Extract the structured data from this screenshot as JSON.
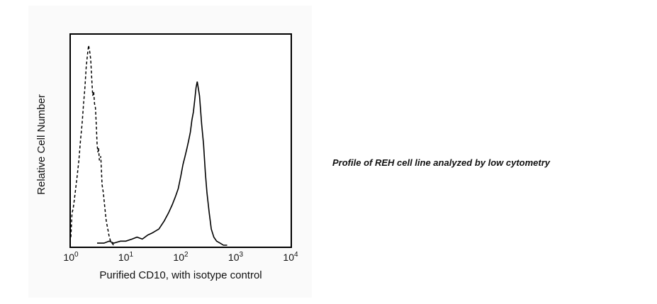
{
  "caption": "Profile of REH cell line analyzed by low cytometry",
  "chart_data": {
    "type": "line",
    "title": "",
    "xlabel": "Purified CD10, with isotype control",
    "ylabel": "Relative Cell Number",
    "x_scale": "log",
    "xlim": [
      1,
      10000
    ],
    "ylim": [
      0,
      1
    ],
    "x_ticks": [
      {
        "value": 1,
        "base": "10",
        "exp": "0"
      },
      {
        "value": 10,
        "base": "10",
        "exp": "1"
      },
      {
        "value": 100,
        "base": "10",
        "exp": "2"
      },
      {
        "value": 1000,
        "base": "10",
        "exp": "3"
      },
      {
        "value": 10000,
        "base": "10",
        "exp": "4"
      }
    ],
    "grid": false,
    "legend": "none",
    "series": [
      {
        "style": "dashed",
        "color": "#000000",
        "x": [
          1.0,
          1.05,
          1.1,
          1.15,
          1.2,
          1.3,
          1.4,
          1.5,
          1.6,
          1.7,
          1.8,
          1.9,
          2.0,
          2.1,
          2.2,
          2.3,
          2.4,
          2.5,
          2.6,
          2.7,
          2.8,
          2.9,
          3.0,
          3.1,
          3.2,
          3.3,
          3.5,
          3.7,
          3.9,
          4.1,
          4.4,
          4.7,
          5.0,
          5.3,
          5.6,
          6.0
        ],
        "y": [
          0.04,
          0.16,
          0.18,
          0.22,
          0.26,
          0.34,
          0.42,
          0.52,
          0.6,
          0.7,
          0.78,
          0.88,
          0.94,
          0.99,
          0.96,
          0.92,
          0.82,
          0.74,
          0.76,
          0.7,
          0.68,
          0.6,
          0.5,
          0.46,
          0.48,
          0.42,
          0.44,
          0.3,
          0.26,
          0.2,
          0.12,
          0.08,
          0.04,
          0.02,
          0.01,
          0.0
        ]
      },
      {
        "style": "solid",
        "color": "#000000",
        "x": [
          3.0,
          4.0,
          5.0,
          6.0,
          8.0,
          10.0,
          13.0,
          16.0,
          20.0,
          25.0,
          30.0,
          40.0,
          50.0,
          60.0,
          70.0,
          80.0,
          90.0,
          100.0,
          110.0,
          120.0,
          130.0,
          140.0,
          150.0,
          160.0,
          170.0,
          180.0,
          190.0,
          200.0,
          220.0,
          240.0,
          260.0,
          280.0,
          300.0,
          330.0,
          360.0,
          400.0,
          450.0,
          520.0,
          600.0,
          700.0
        ],
        "y": [
          0.01,
          0.01,
          0.02,
          0.01,
          0.02,
          0.02,
          0.03,
          0.04,
          0.03,
          0.05,
          0.06,
          0.08,
          0.12,
          0.16,
          0.2,
          0.24,
          0.28,
          0.34,
          0.4,
          0.44,
          0.48,
          0.52,
          0.56,
          0.62,
          0.66,
          0.72,
          0.78,
          0.81,
          0.74,
          0.6,
          0.5,
          0.36,
          0.26,
          0.16,
          0.08,
          0.04,
          0.02,
          0.01,
          0.0,
          0.0
        ]
      }
    ]
  }
}
